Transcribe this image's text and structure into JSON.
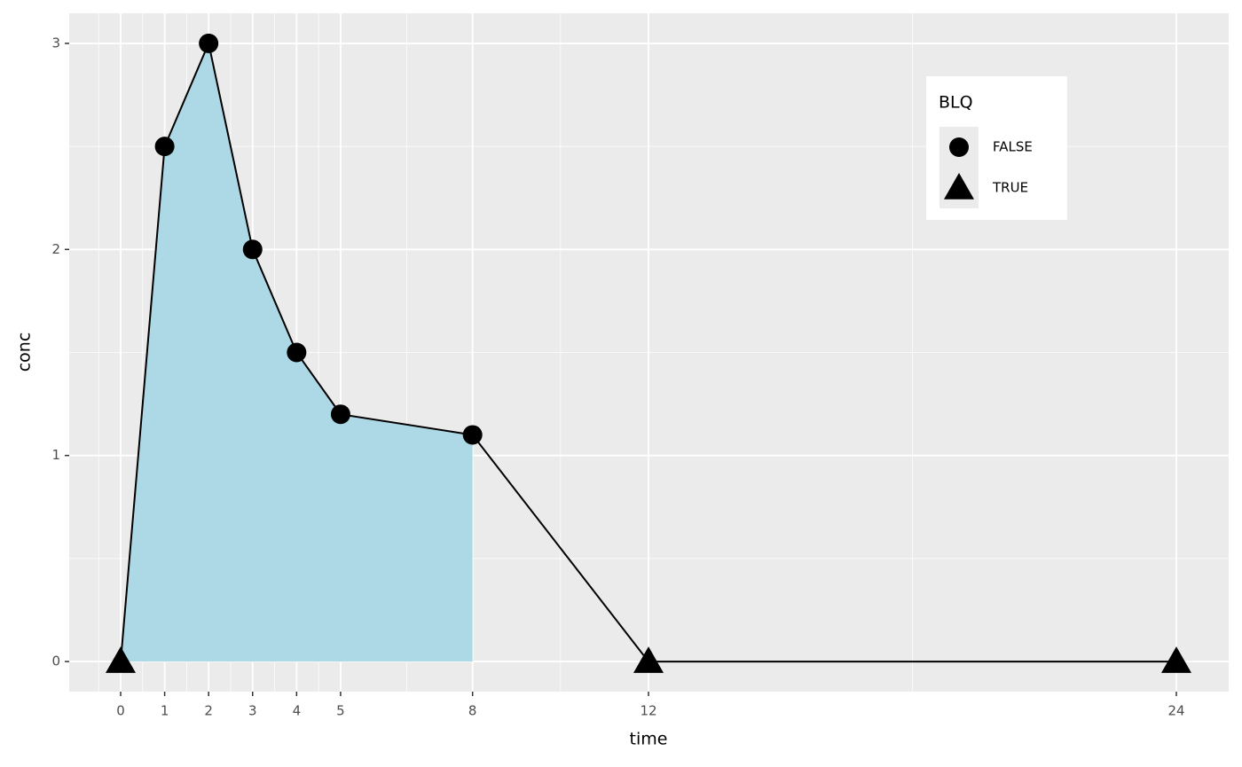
{
  "chart_data": {
    "type": "line",
    "x_label": "time",
    "y_label": "conc",
    "x": [
      0,
      1,
      2,
      3,
      4,
      5,
      8,
      12,
      24
    ],
    "values": [
      0,
      2.5,
      3,
      2,
      1.5,
      1.2,
      1.1,
      0,
      0
    ],
    "blq": [
      true,
      false,
      false,
      false,
      false,
      false,
      false,
      true,
      true
    ],
    "color": "#000000",
    "area": {
      "color": "#add8e6",
      "x_range": [
        0,
        8
      ]
    },
    "xlim": [
      -1.17,
      25.19
    ],
    "ylim": [
      -0.146,
      3.146
    ],
    "xticks": [
      0,
      1,
      2,
      3,
      4,
      5,
      8,
      12,
      24
    ],
    "yticks": [
      0,
      1,
      2,
      3
    ],
    "grid": true,
    "legend": {
      "title": "BLQ",
      "position": "top-right",
      "entries": [
        {
          "label": "FALSE",
          "shape": "circle"
        },
        {
          "label": "TRUE",
          "shape": "triangle"
        }
      ]
    }
  }
}
